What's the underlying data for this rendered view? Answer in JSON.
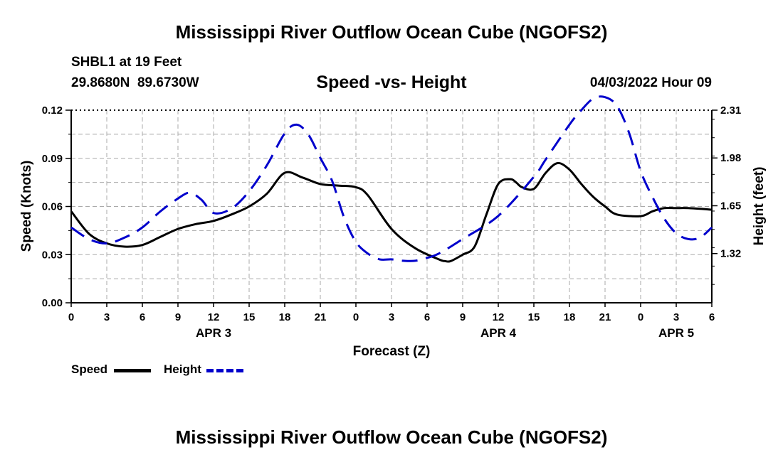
{
  "page": {
    "title_top": "Mississippi River Outflow Ocean Cube (NGOFS2)",
    "title_bottom": "Mississippi River Outflow Ocean Cube (NGOFS2)",
    "station": "SHBL1 at 19 Feet",
    "coords": "29.8680N  89.6730W",
    "datetime": "04/03/2022 Hour 09"
  },
  "legend": {
    "speed_label": "Speed",
    "height_label": "Height"
  },
  "chart_data": {
    "type": "line",
    "title": "Speed -vs- Height",
    "xlabel": "Forecast (Z)",
    "ylabel_left": "Speed (Knots)",
    "ylabel_right": "Height (feet)",
    "x_range_hours": [
      0,
      54
    ],
    "ylim_left": [
      0,
      0.12
    ],
    "ylim_right": [
      0.98,
      2.31
    ],
    "y_ticks_left": [
      "0.00",
      "0.03",
      "0.06",
      "0.09",
      "0.12"
    ],
    "y_tick_values_left": [
      0,
      0.03,
      0.06,
      0.09,
      0.12
    ],
    "y_ticks_right": [
      "1.32",
      "1.65",
      "1.98",
      "2.31"
    ],
    "y_tick_values_right": [
      1.32,
      1.65,
      1.98,
      2.31
    ],
    "x_tick_labels": [
      "0",
      "3",
      "6",
      "9",
      "12",
      "15",
      "18",
      "21",
      "0",
      "3",
      "6",
      "9",
      "12",
      "15",
      "18",
      "21",
      "0",
      "3",
      "6"
    ],
    "date_labels": [
      {
        "label": "APR 3",
        "hour": 12
      },
      {
        "label": "APR 4",
        "hour": 36
      },
      {
        "label": "APR 5",
        "hour": 51
      }
    ],
    "grid": true,
    "colors": {
      "speed": "#000000",
      "height": "#0000cc",
      "grid": "#aaaaaa"
    },
    "series": [
      {
        "name": "Speed",
        "axis": "left",
        "style": "solid",
        "x": [
          0,
          1.5,
          3,
          4.5,
          6,
          7.5,
          9,
          10.5,
          12,
          13.5,
          15,
          16.5,
          18,
          19.5,
          21,
          22.5,
          24,
          25,
          27,
          29,
          31,
          31.5,
          32,
          33,
          34,
          35,
          36,
          37,
          37.5,
          38,
          39,
          40,
          41,
          42,
          43,
          44,
          45,
          46,
          48,
          49,
          50,
          51,
          52,
          54
        ],
        "values": [
          0.057,
          0.043,
          0.037,
          0.035,
          0.036,
          0.041,
          0.046,
          0.049,
          0.051,
          0.055,
          0.06,
          0.068,
          0.081,
          0.078,
          0.074,
          0.073,
          0.072,
          0.067,
          0.046,
          0.034,
          0.027,
          0.026,
          0.026,
          0.03,
          0.035,
          0.055,
          0.074,
          0.077,
          0.075,
          0.072,
          0.071,
          0.081,
          0.087,
          0.083,
          0.074,
          0.066,
          0.06,
          0.055,
          0.054,
          0.057,
          0.059,
          0.059,
          0.059,
          0.058
        ]
      },
      {
        "name": "Height",
        "axis": "right",
        "style": "dashed",
        "x": [
          0,
          1.5,
          3,
          4.5,
          6,
          7.5,
          9,
          10,
          11,
          12,
          13.5,
          15,
          16.5,
          18,
          19,
          20,
          21,
          22,
          23,
          24,
          25,
          26,
          27,
          28,
          29,
          30,
          31,
          33,
          36,
          39,
          40,
          42,
          43,
          44,
          45,
          46,
          47,
          48,
          49,
          50,
          51,
          52,
          53,
          54
        ],
        "values": [
          1.5,
          1.42,
          1.39,
          1.43,
          1.5,
          1.61,
          1.7,
          1.74,
          1.69,
          1.6,
          1.63,
          1.75,
          1.93,
          2.15,
          2.21,
          2.14,
          1.98,
          1.82,
          1.57,
          1.4,
          1.32,
          1.28,
          1.28,
          1.27,
          1.27,
          1.29,
          1.32,
          1.42,
          1.58,
          1.85,
          1.97,
          2.21,
          2.31,
          2.39,
          2.4,
          2.34,
          2.16,
          1.89,
          1.71,
          1.56,
          1.46,
          1.42,
          1.43,
          1.5
        ]
      }
    ]
  }
}
